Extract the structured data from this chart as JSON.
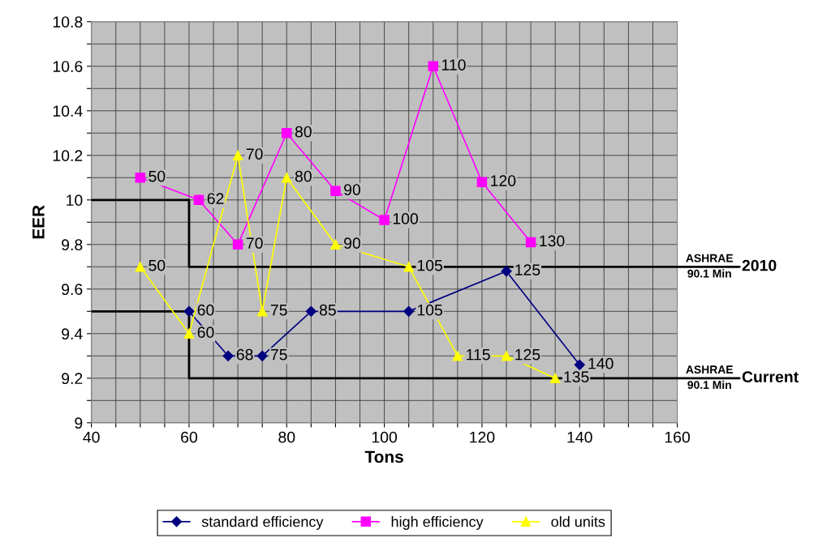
{
  "chart_data": {
    "type": "line",
    "xlabel": "Tons",
    "ylabel": "EER",
    "xlim": [
      40,
      160
    ],
    "ylim": [
      9,
      10.8
    ],
    "xticks": [
      40,
      {
        "value": 45,
        "label": null
      },
      {
        "value": 50,
        "label": null
      },
      {
        "value": 55,
        "label": null
      },
      60,
      {
        "value": 65,
        "label": null
      },
      {
        "value": 70,
        "label": null
      },
      {
        "value": 75,
        "label": null
      },
      80,
      {
        "value": 85,
        "label": null
      },
      {
        "value": 90,
        "label": null
      },
      {
        "value": 95,
        "label": null
      },
      100,
      {
        "value": 105,
        "label": null
      },
      {
        "value": 110,
        "label": null
      },
      {
        "value": 115,
        "label": null
      },
      120,
      {
        "value": 125,
        "label": null
      },
      {
        "value": 130,
        "label": null
      },
      {
        "value": 135,
        "label": null
      },
      140,
      {
        "value": 145,
        "label": null
      },
      {
        "value": 150,
        "label": null
      },
      {
        "value": 155,
        "label": null
      },
      160
    ],
    "yticks": [
      9,
      {
        "value": 9.1,
        "label": null
      },
      9.2,
      {
        "value": 9.3,
        "label": null
      },
      9.4,
      {
        "value": 9.5,
        "label": null
      },
      9.6,
      {
        "value": 9.7,
        "label": null
      },
      9.8,
      {
        "value": 9.9,
        "label": null
      },
      {
        "value": 10,
        "label": "10"
      },
      {
        "value": 10.1,
        "label": null
      },
      10.2,
      {
        "value": 10.3,
        "label": null
      },
      10.4,
      {
        "value": 10.5,
        "label": null
      },
      10.6,
      {
        "value": 10.7,
        "label": null
      },
      10.8
    ],
    "grid": true,
    "legend": "bottom",
    "series": [
      {
        "name": "standard efficiency",
        "color": "#000080",
        "marker": "diamond",
        "x": [
          60,
          68,
          75,
          85,
          105,
          125,
          140
        ],
        "values": [
          9.5,
          9.3,
          9.3,
          9.5,
          9.5,
          9.68,
          9.26
        ]
      },
      {
        "name": "high efficiency",
        "color": "#ff00ff",
        "marker": "square",
        "x": [
          50,
          62,
          70,
          80,
          90,
          100,
          110,
          120,
          130
        ],
        "values": [
          10.1,
          10.0,
          9.8,
          10.3,
          10.04,
          9.91,
          10.6,
          10.08,
          9.81
        ]
      },
      {
        "name": "old units",
        "color": "#ffff00",
        "marker": "triangle",
        "x": [
          50,
          60,
          70,
          75,
          80,
          90,
          105,
          115,
          125,
          135
        ],
        "values": [
          9.7,
          9.4,
          10.2,
          9.5,
          10.1,
          9.8,
          9.7,
          9.3,
          9.3,
          9.2
        ]
      },
      {
        "type": "step",
        "name": "2010",
        "color": "#000000",
        "x": [
          40,
          60,
          160
        ],
        "values": [
          10.0,
          9.7,
          9.7
        ]
      },
      {
        "type": "step",
        "name": "Current",
        "color": "#000000",
        "x": [
          40,
          60,
          160
        ],
        "values": [
          9.5,
          9.2,
          9.2
        ]
      }
    ],
    "annotations": [
      {
        "text": "ASHRAE\n90.1 Min",
        "x": 160,
        "y": 9.7
      },
      {
        "text": "ASHRAE\n90.1 Min",
        "x": 160,
        "y": 9.2
      },
      {
        "text": "60",
        "x": 60,
        "y": 9.5
      },
      {
        "text": "68",
        "x": 68,
        "y": 9.3
      },
      {
        "text": "75",
        "x": 75,
        "y": 9.3
      },
      {
        "text": "85",
        "x": 85,
        "y": 9.5
      },
      {
        "text": "105",
        "x": 105,
        "y": 9.5
      },
      {
        "text": "125",
        "x": 125,
        "y": 9.68
      },
      {
        "text": "140",
        "x": 140,
        "y": 9.26
      },
      {
        "text": "50",
        "x": 50,
        "y": 10.1
      },
      {
        "text": "62",
        "x": 62,
        "y": 10.0
      },
      {
        "text": "70",
        "x": 70,
        "y": 9.8
      },
      {
        "text": "80",
        "x": 80,
        "y": 10.3
      },
      {
        "text": "90",
        "x": 90,
        "y": 10.04
      },
      {
        "text": "100",
        "x": 100,
        "y": 9.91
      },
      {
        "text": "110",
        "x": 110,
        "y": 10.6
      },
      {
        "text": "120",
        "x": 120,
        "y": 10.08
      },
      {
        "text": "130",
        "x": 130,
        "y": 9.81
      },
      {
        "text": "50",
        "x": 50,
        "y": 9.7
      },
      {
        "text": "60",
        "x": 60,
        "y": 9.4
      },
      {
        "text": "70",
        "x": 70,
        "y": 10.2
      },
      {
        "text": "75",
        "x": 75,
        "y": 9.5
      },
      {
        "text": "80",
        "x": 80,
        "y": 10.1
      },
      {
        "text": "90",
        "x": 90,
        "y": 9.8
      },
      {
        "text": "105",
        "x": 105,
        "y": 9.7
      },
      {
        "text": "115",
        "x": 115,
        "y": 9.3
      },
      {
        "text": "125",
        "x": 125,
        "y": 9.3
      },
      {
        "text": "135",
        "x": 135,
        "y": 9.2
      }
    ]
  }
}
